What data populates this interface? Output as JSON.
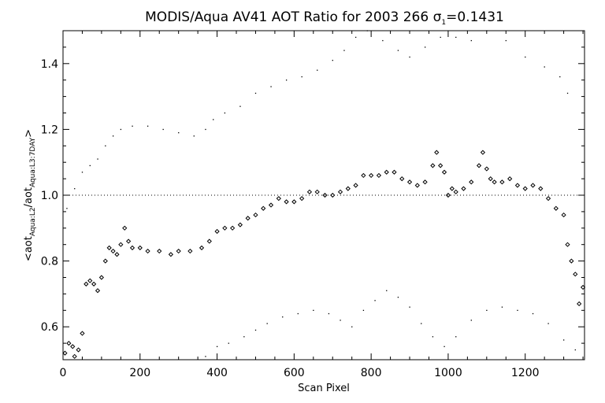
{
  "chart_data": {
    "type": "scatter",
    "title": {
      "prefix": "MODIS/Aqua AV41 AOT Ratio for 2003 266 ",
      "sigma": "σ",
      "sigma_sub": "1",
      "suffix": "=0.1431"
    },
    "xlabel": "Scan Pixel",
    "ylabel": {
      "open": "<aot",
      "sub1": "Aqua:L2",
      "mid": "/aot",
      "sub2": "Aqua:L3:7DAY",
      "close": ">"
    },
    "xlim": [
      0,
      1354
    ],
    "ylim": [
      0.5,
      1.5
    ],
    "x_ticks": [
      0,
      200,
      400,
      600,
      800,
      1000,
      1200
    ],
    "x_tick_labels": [
      "0",
      "200",
      "400",
      "600",
      "800",
      "1000",
      "1200"
    ],
    "y_ticks": [
      0.6,
      0.8,
      1.0,
      1.2,
      1.4
    ],
    "y_tick_labels": [
      "0.6",
      "0.8",
      "1.0",
      "1.2",
      "1.4"
    ],
    "reference_line": 1.0,
    "grid": false,
    "series": [
      {
        "style": "diamond",
        "points": [
          [
            5,
            0.52
          ],
          [
            15,
            0.55
          ],
          [
            25,
            0.54
          ],
          [
            30,
            0.51
          ],
          [
            40,
            0.53
          ],
          [
            50,
            0.58
          ],
          [
            60,
            0.73
          ],
          [
            70,
            0.74
          ],
          [
            80,
            0.73
          ],
          [
            90,
            0.71
          ],
          [
            100,
            0.75
          ],
          [
            110,
            0.8
          ],
          [
            120,
            0.84
          ],
          [
            130,
            0.83
          ],
          [
            140,
            0.82
          ],
          [
            150,
            0.85
          ],
          [
            160,
            0.9
          ],
          [
            170,
            0.86
          ],
          [
            180,
            0.84
          ],
          [
            200,
            0.84
          ],
          [
            220,
            0.83
          ],
          [
            250,
            0.83
          ],
          [
            280,
            0.82
          ],
          [
            300,
            0.83
          ],
          [
            330,
            0.83
          ],
          [
            360,
            0.84
          ],
          [
            380,
            0.86
          ],
          [
            400,
            0.89
          ],
          [
            420,
            0.9
          ],
          [
            440,
            0.9
          ],
          [
            460,
            0.91
          ],
          [
            480,
            0.93
          ],
          [
            500,
            0.94
          ],
          [
            520,
            0.96
          ],
          [
            540,
            0.97
          ],
          [
            560,
            0.99
          ],
          [
            580,
            0.98
          ],
          [
            600,
            0.98
          ],
          [
            620,
            0.99
          ],
          [
            640,
            1.01
          ],
          [
            660,
            1.01
          ],
          [
            680,
            1.0
          ],
          [
            700,
            1.0
          ],
          [
            720,
            1.01
          ],
          [
            740,
            1.02
          ],
          [
            760,
            1.03
          ],
          [
            780,
            1.06
          ],
          [
            800,
            1.06
          ],
          [
            820,
            1.06
          ],
          [
            840,
            1.07
          ],
          [
            860,
            1.07
          ],
          [
            880,
            1.05
          ],
          [
            900,
            1.04
          ],
          [
            920,
            1.03
          ],
          [
            940,
            1.04
          ],
          [
            960,
            1.09
          ],
          [
            970,
            1.13
          ],
          [
            980,
            1.09
          ],
          [
            990,
            1.07
          ],
          [
            1000,
            1.0
          ],
          [
            1010,
            1.02
          ],
          [
            1020,
            1.01
          ],
          [
            1040,
            1.02
          ],
          [
            1060,
            1.04
          ],
          [
            1080,
            1.09
          ],
          [
            1090,
            1.13
          ],
          [
            1100,
            1.08
          ],
          [
            1110,
            1.05
          ],
          [
            1120,
            1.04
          ],
          [
            1140,
            1.04
          ],
          [
            1160,
            1.05
          ],
          [
            1180,
            1.03
          ],
          [
            1200,
            1.02
          ],
          [
            1220,
            1.03
          ],
          [
            1240,
            1.02
          ],
          [
            1260,
            0.99
          ],
          [
            1280,
            0.96
          ],
          [
            1300,
            0.94
          ],
          [
            1310,
            0.85
          ],
          [
            1320,
            0.8
          ],
          [
            1330,
            0.76
          ],
          [
            1340,
            0.67
          ],
          [
            1350,
            0.72
          ]
        ]
      },
      {
        "style": "dot",
        "name_hint": "upper envelope",
        "points": [
          [
            10,
            0.96
          ],
          [
            30,
            1.02
          ],
          [
            50,
            1.07
          ],
          [
            70,
            1.09
          ],
          [
            90,
            1.11
          ],
          [
            110,
            1.15
          ],
          [
            130,
            1.18
          ],
          [
            150,
            1.2
          ],
          [
            180,
            1.21
          ],
          [
            220,
            1.21
          ],
          [
            260,
            1.2
          ],
          [
            300,
            1.19
          ],
          [
            340,
            1.18
          ],
          [
            370,
            1.2
          ],
          [
            390,
            1.23
          ],
          [
            420,
            1.25
          ],
          [
            460,
            1.27
          ],
          [
            500,
            1.31
          ],
          [
            540,
            1.33
          ],
          [
            580,
            1.35
          ],
          [
            620,
            1.36
          ],
          [
            660,
            1.38
          ],
          [
            700,
            1.41
          ],
          [
            730,
            1.44
          ],
          [
            760,
            1.48
          ],
          [
            790,
            1.5
          ],
          [
            830,
            1.47
          ],
          [
            870,
            1.44
          ],
          [
            900,
            1.42
          ],
          [
            940,
            1.45
          ],
          [
            980,
            1.48
          ],
          [
            1020,
            1.48
          ],
          [
            1060,
            1.47
          ],
          [
            1100,
            1.5
          ],
          [
            1150,
            1.47
          ],
          [
            1200,
            1.42
          ],
          [
            1250,
            1.39
          ],
          [
            1290,
            1.36
          ],
          [
            1310,
            1.31
          ]
        ]
      },
      {
        "style": "dot",
        "name_hint": "lower envelope",
        "points": [
          [
            370,
            0.51
          ],
          [
            400,
            0.54
          ],
          [
            430,
            0.55
          ],
          [
            470,
            0.57
          ],
          [
            500,
            0.59
          ],
          [
            530,
            0.61
          ],
          [
            570,
            0.63
          ],
          [
            610,
            0.64
          ],
          [
            650,
            0.65
          ],
          [
            690,
            0.64
          ],
          [
            720,
            0.62
          ],
          [
            750,
            0.6
          ],
          [
            780,
            0.65
          ],
          [
            810,
            0.68
          ],
          [
            840,
            0.71
          ],
          [
            870,
            0.69
          ],
          [
            900,
            0.66
          ],
          [
            930,
            0.61
          ],
          [
            960,
            0.57
          ],
          [
            990,
            0.54
          ],
          [
            1020,
            0.57
          ],
          [
            1060,
            0.62
          ],
          [
            1100,
            0.65
          ],
          [
            1140,
            0.66
          ],
          [
            1180,
            0.65
          ],
          [
            1220,
            0.64
          ],
          [
            1260,
            0.61
          ],
          [
            1300,
            0.56
          ],
          [
            1330,
            0.53
          ]
        ]
      }
    ]
  }
}
